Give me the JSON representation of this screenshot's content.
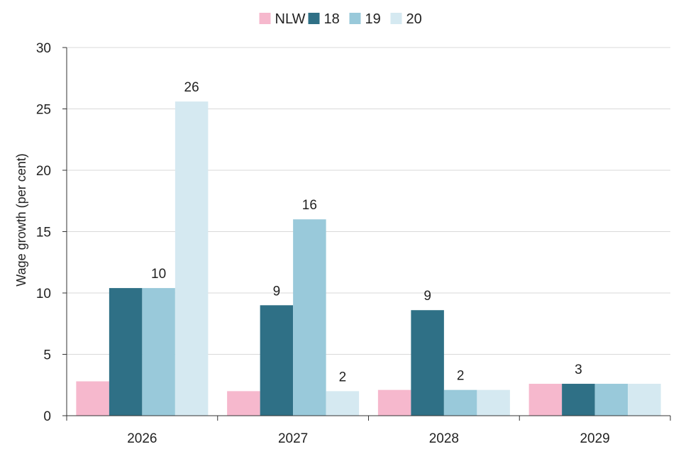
{
  "chart_data": {
    "type": "bar",
    "categories": [
      "2026",
      "2027",
      "2028",
      "2029"
    ],
    "series": [
      {
        "name": "NLW",
        "color": "#f6b8cd",
        "values": [
          2.8,
          2.0,
          2.1,
          2.6
        ]
      },
      {
        "name": "18",
        "color": "#2f7086",
        "values": [
          10.4,
          9.0,
          8.6,
          2.6
        ]
      },
      {
        "name": "19",
        "color": "#99c9da",
        "values": [
          10.4,
          16.0,
          2.1,
          2.6
        ]
      },
      {
        "name": "20",
        "color": "#d5e9f1",
        "values": [
          25.6,
          2.0,
          2.1,
          2.6
        ]
      }
    ],
    "data_labels": [
      {
        "category": "2026",
        "series": "19",
        "text": "10"
      },
      {
        "category": "2026",
        "series": "20",
        "text": "26"
      },
      {
        "category": "2027",
        "series": "18",
        "text": "9"
      },
      {
        "category": "2027",
        "series": "19",
        "text": "16"
      },
      {
        "category": "2027",
        "series": "20",
        "text": "2"
      },
      {
        "category": "2028",
        "series": "18",
        "text": "9"
      },
      {
        "category": "2028",
        "series": "19",
        "text": "2"
      },
      {
        "category": "2029",
        "series": "18",
        "text": "3"
      }
    ],
    "ylabel": "Wage growth (per cent)",
    "xlabel": "",
    "title": "",
    "ylim": [
      0,
      30
    ],
    "yticks": [
      0,
      5,
      10,
      15,
      20,
      25,
      30
    ],
    "grid": true,
    "legend_position": "top-center"
  }
}
